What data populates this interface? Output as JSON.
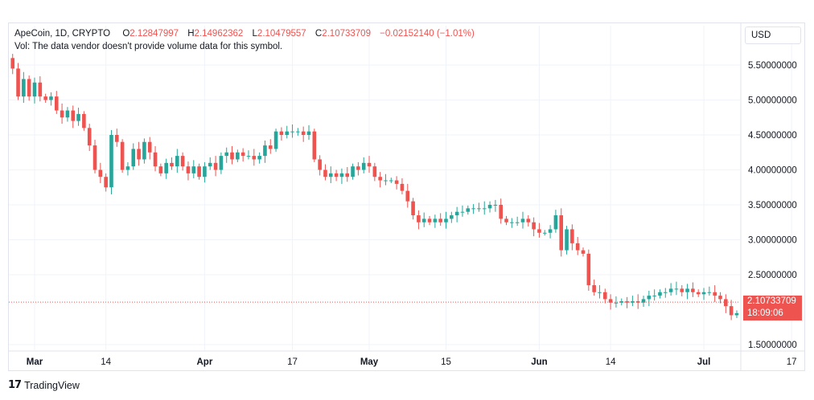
{
  "legend": {
    "symbol": "ApeCoin, 1D, CRYPTO",
    "o_label": "O",
    "o_value": "2.12847997",
    "h_label": "H",
    "h_value": "2.14962362",
    "l_label": "L",
    "l_value": "2.10479557",
    "c_label": "C",
    "c_value": "2.10733709",
    "change": "−0.02152140 (−1.01%)",
    "vol_note": "Vol: The data vendor doesn't provide volume data for this symbol."
  },
  "currency_button": "USD",
  "last_price": {
    "value": "2.10733709",
    "countdown": "18:09:06"
  },
  "branding": {
    "name": "TradingView"
  },
  "colors": {
    "up": "#26a69a",
    "down": "#ef5350",
    "grid": "#f0f3fa",
    "text": "#131722"
  },
  "chart_data": {
    "type": "candlestick",
    "title": "ApeCoin, 1D, CRYPTO",
    "xlabel": "",
    "ylabel": "",
    "ylim": [
      1.4,
      5.65
    ],
    "grid": true,
    "y_ticks": [
      "1.50000000",
      "2.50000000",
      "3.00000000",
      "3.50000000",
      "4.00000000",
      "4.50000000",
      "5.00000000",
      "5.50000000"
    ],
    "x_ticks": [
      {
        "label": "Mar",
        "date": "2022-03-01"
      },
      {
        "label": "14",
        "date": "2022-03-14"
      },
      {
        "label": "Apr",
        "date": "2022-04-01"
      },
      {
        "label": "17",
        "date": "2022-04-17"
      },
      {
        "label": "May",
        "date": "2022-05-01"
      },
      {
        "label": "15",
        "date": "2022-05-15"
      },
      {
        "label": "Jun",
        "date": "2022-06-01"
      },
      {
        "label": "14",
        "date": "2022-06-14"
      },
      {
        "label": "Jul",
        "date": "2022-07-01"
      },
      {
        "label": "17",
        "date": "2022-07-17"
      }
    ],
    "closes": [
      {
        "date": "2022-02-24",
        "c": 5.6
      },
      {
        "date": "2022-02-25",
        "c": 5.45
      },
      {
        "date": "2022-02-26",
        "c": 5.05
      },
      {
        "date": "2022-02-27",
        "c": 5.3
      },
      {
        "date": "2022-02-28",
        "c": 5.05
      },
      {
        "date": "2022-03-01",
        "c": 5.25
      },
      {
        "date": "2022-03-02",
        "c": 5.05
      },
      {
        "date": "2022-03-03",
        "c": 5.0
      },
      {
        "date": "2022-03-04",
        "c": 5.05
      },
      {
        "date": "2022-03-05",
        "c": 4.85
      },
      {
        "date": "2022-03-06",
        "c": 4.75
      },
      {
        "date": "2022-03-07",
        "c": 4.85
      },
      {
        "date": "2022-03-08",
        "c": 4.7
      },
      {
        "date": "2022-03-09",
        "c": 4.8
      },
      {
        "date": "2022-03-10",
        "c": 4.6
      },
      {
        "date": "2022-03-11",
        "c": 4.35
      },
      {
        "date": "2022-03-12",
        "c": 4.0
      },
      {
        "date": "2022-03-13",
        "c": 3.9
      },
      {
        "date": "2022-03-14",
        "c": 3.75
      },
      {
        "date": "2022-03-15",
        "c": 4.5
      },
      {
        "date": "2022-03-16",
        "c": 4.4
      },
      {
        "date": "2022-03-17",
        "c": 4.0
      },
      {
        "date": "2022-03-18",
        "c": 4.05
      },
      {
        "date": "2022-03-19",
        "c": 4.3
      },
      {
        "date": "2022-03-20",
        "c": 4.15
      },
      {
        "date": "2022-03-21",
        "c": 4.4
      },
      {
        "date": "2022-03-22",
        "c": 4.25
      },
      {
        "date": "2022-03-23",
        "c": 4.05
      },
      {
        "date": "2022-03-24",
        "c": 3.95
      },
      {
        "date": "2022-03-25",
        "c": 4.1
      },
      {
        "date": "2022-03-26",
        "c": 4.05
      },
      {
        "date": "2022-03-27",
        "c": 4.2
      },
      {
        "date": "2022-03-28",
        "c": 4.05
      },
      {
        "date": "2022-03-29",
        "c": 3.95
      },
      {
        "date": "2022-03-30",
        "c": 4.05
      },
      {
        "date": "2022-03-31",
        "c": 3.9
      },
      {
        "date": "2022-04-01",
        "c": 4.05
      },
      {
        "date": "2022-04-02",
        "c": 4.1
      },
      {
        "date": "2022-04-03",
        "c": 4.0
      },
      {
        "date": "2022-04-04",
        "c": 4.2
      },
      {
        "date": "2022-04-05",
        "c": 4.25
      },
      {
        "date": "2022-04-06",
        "c": 4.15
      },
      {
        "date": "2022-04-07",
        "c": 4.25
      },
      {
        "date": "2022-04-08",
        "c": 4.2
      },
      {
        "date": "2022-04-09",
        "c": 4.2
      },
      {
        "date": "2022-04-10",
        "c": 4.15
      },
      {
        "date": "2022-04-11",
        "c": 4.2
      },
      {
        "date": "2022-04-12",
        "c": 4.35
      },
      {
        "date": "2022-04-13",
        "c": 4.3
      },
      {
        "date": "2022-04-14",
        "c": 4.55
      },
      {
        "date": "2022-04-15",
        "c": 4.5
      },
      {
        "date": "2022-04-16",
        "c": 4.55
      },
      {
        "date": "2022-04-17",
        "c": 4.55
      },
      {
        "date": "2022-04-18",
        "c": 4.55
      },
      {
        "date": "2022-04-19",
        "c": 4.5
      },
      {
        "date": "2022-04-20",
        "c": 4.55
      },
      {
        "date": "2022-04-21",
        "c": 4.15
      },
      {
        "date": "2022-04-22",
        "c": 4.0
      },
      {
        "date": "2022-04-23",
        "c": 3.9
      },
      {
        "date": "2022-04-24",
        "c": 3.95
      },
      {
        "date": "2022-04-25",
        "c": 3.9
      },
      {
        "date": "2022-04-26",
        "c": 3.95
      },
      {
        "date": "2022-04-27",
        "c": 3.9
      },
      {
        "date": "2022-04-28",
        "c": 4.05
      },
      {
        "date": "2022-04-29",
        "c": 4.0
      },
      {
        "date": "2022-04-30",
        "c": 4.1
      },
      {
        "date": "2022-05-01",
        "c": 4.05
      },
      {
        "date": "2022-05-02",
        "c": 3.9
      },
      {
        "date": "2022-05-03",
        "c": 3.85
      },
      {
        "date": "2022-05-04",
        "c": 3.85
      },
      {
        "date": "2022-05-05",
        "c": 3.85
      },
      {
        "date": "2022-05-06",
        "c": 3.8
      },
      {
        "date": "2022-05-07",
        "c": 3.7
      },
      {
        "date": "2022-05-08",
        "c": 3.55
      },
      {
        "date": "2022-05-09",
        "c": 3.35
      },
      {
        "date": "2022-05-10",
        "c": 3.25
      },
      {
        "date": "2022-05-11",
        "c": 3.3
      },
      {
        "date": "2022-05-12",
        "c": 3.25
      },
      {
        "date": "2022-05-13",
        "c": 3.3
      },
      {
        "date": "2022-05-14",
        "c": 3.25
      },
      {
        "date": "2022-05-15",
        "c": 3.3
      },
      {
        "date": "2022-05-16",
        "c": 3.35
      },
      {
        "date": "2022-05-17",
        "c": 3.4
      },
      {
        "date": "2022-05-18",
        "c": 3.4
      },
      {
        "date": "2022-05-19",
        "c": 3.45
      },
      {
        "date": "2022-05-20",
        "c": 3.45
      },
      {
        "date": "2022-05-21",
        "c": 3.45
      },
      {
        "date": "2022-05-22",
        "c": 3.45
      },
      {
        "date": "2022-05-23",
        "c": 3.5
      },
      {
        "date": "2022-05-24",
        "c": 3.5
      },
      {
        "date": "2022-05-25",
        "c": 3.3
      },
      {
        "date": "2022-05-26",
        "c": 3.25
      },
      {
        "date": "2022-05-27",
        "c": 3.25
      },
      {
        "date": "2022-05-28",
        "c": 3.25
      },
      {
        "date": "2022-05-29",
        "c": 3.3
      },
      {
        "date": "2022-05-30",
        "c": 3.25
      },
      {
        "date": "2022-05-31",
        "c": 3.15
      },
      {
        "date": "2022-06-01",
        "c": 3.1
      },
      {
        "date": "2022-06-02",
        "c": 3.1
      },
      {
        "date": "2022-06-03",
        "c": 3.15
      },
      {
        "date": "2022-06-04",
        "c": 3.35
      },
      {
        "date": "2022-06-05",
        "c": 2.85
      },
      {
        "date": "2022-06-06",
        "c": 3.15
      },
      {
        "date": "2022-06-07",
        "c": 2.95
      },
      {
        "date": "2022-06-08",
        "c": 2.85
      },
      {
        "date": "2022-06-09",
        "c": 2.8
      },
      {
        "date": "2022-06-10",
        "c": 2.35
      },
      {
        "date": "2022-06-11",
        "c": 2.25
      },
      {
        "date": "2022-06-12",
        "c": 2.25
      },
      {
        "date": "2022-06-13",
        "c": 2.15
      },
      {
        "date": "2022-06-14",
        "c": 2.1
      },
      {
        "date": "2022-06-15",
        "c": 2.1
      },
      {
        "date": "2022-06-16",
        "c": 2.12
      },
      {
        "date": "2022-06-17",
        "c": 2.1
      },
      {
        "date": "2022-06-18",
        "c": 2.12
      },
      {
        "date": "2022-06-19",
        "c": 2.1
      },
      {
        "date": "2022-06-20",
        "c": 2.15
      },
      {
        "date": "2022-06-21",
        "c": 2.2
      },
      {
        "date": "2022-06-22",
        "c": 2.2
      },
      {
        "date": "2022-06-23",
        "c": 2.25
      },
      {
        "date": "2022-06-24",
        "c": 2.25
      },
      {
        "date": "2022-06-25",
        "c": 2.3
      },
      {
        "date": "2022-06-26",
        "c": 2.3
      },
      {
        "date": "2022-06-27",
        "c": 2.25
      },
      {
        "date": "2022-06-28",
        "c": 2.3
      },
      {
        "date": "2022-06-29",
        "c": 2.25
      },
      {
        "date": "2022-06-30",
        "c": 2.22
      },
      {
        "date": "2022-07-01",
        "c": 2.25
      },
      {
        "date": "2022-07-02",
        "c": 2.25
      },
      {
        "date": "2022-07-03",
        "c": 2.2
      },
      {
        "date": "2022-07-04",
        "c": 2.15
      },
      {
        "date": "2022-07-05",
        "c": 2.05
      },
      {
        "date": "2022-07-06",
        "c": 1.92
      },
      {
        "date": "2022-07-07",
        "c": 1.95
      },
      {
        "date": "2022-07-08",
        "c": 1.95
      },
      {
        "date": "2022-07-09",
        "c": 1.95
      },
      {
        "date": "2022-07-10",
        "c": 1.92
      },
      {
        "date": "2022-07-11",
        "c": 1.9
      },
      {
        "date": "2022-07-12",
        "c": 2.05
      },
      {
        "date": "2022-07-13",
        "c": 2.1
      },
      {
        "date": "2022-07-14",
        "c": 2.1
      },
      {
        "date": "2022-07-15",
        "c": 2.05
      },
      {
        "date": "2022-07-16",
        "c": 2.0
      },
      {
        "date": "2022-07-17",
        "c": 2.05
      },
      {
        "date": "2022-07-18",
        "c": 2.1
      },
      {
        "date": "2022-07-19",
        "c": 2.13
      },
      {
        "date": "2022-07-20",
        "c": 2.11
      }
    ]
  }
}
